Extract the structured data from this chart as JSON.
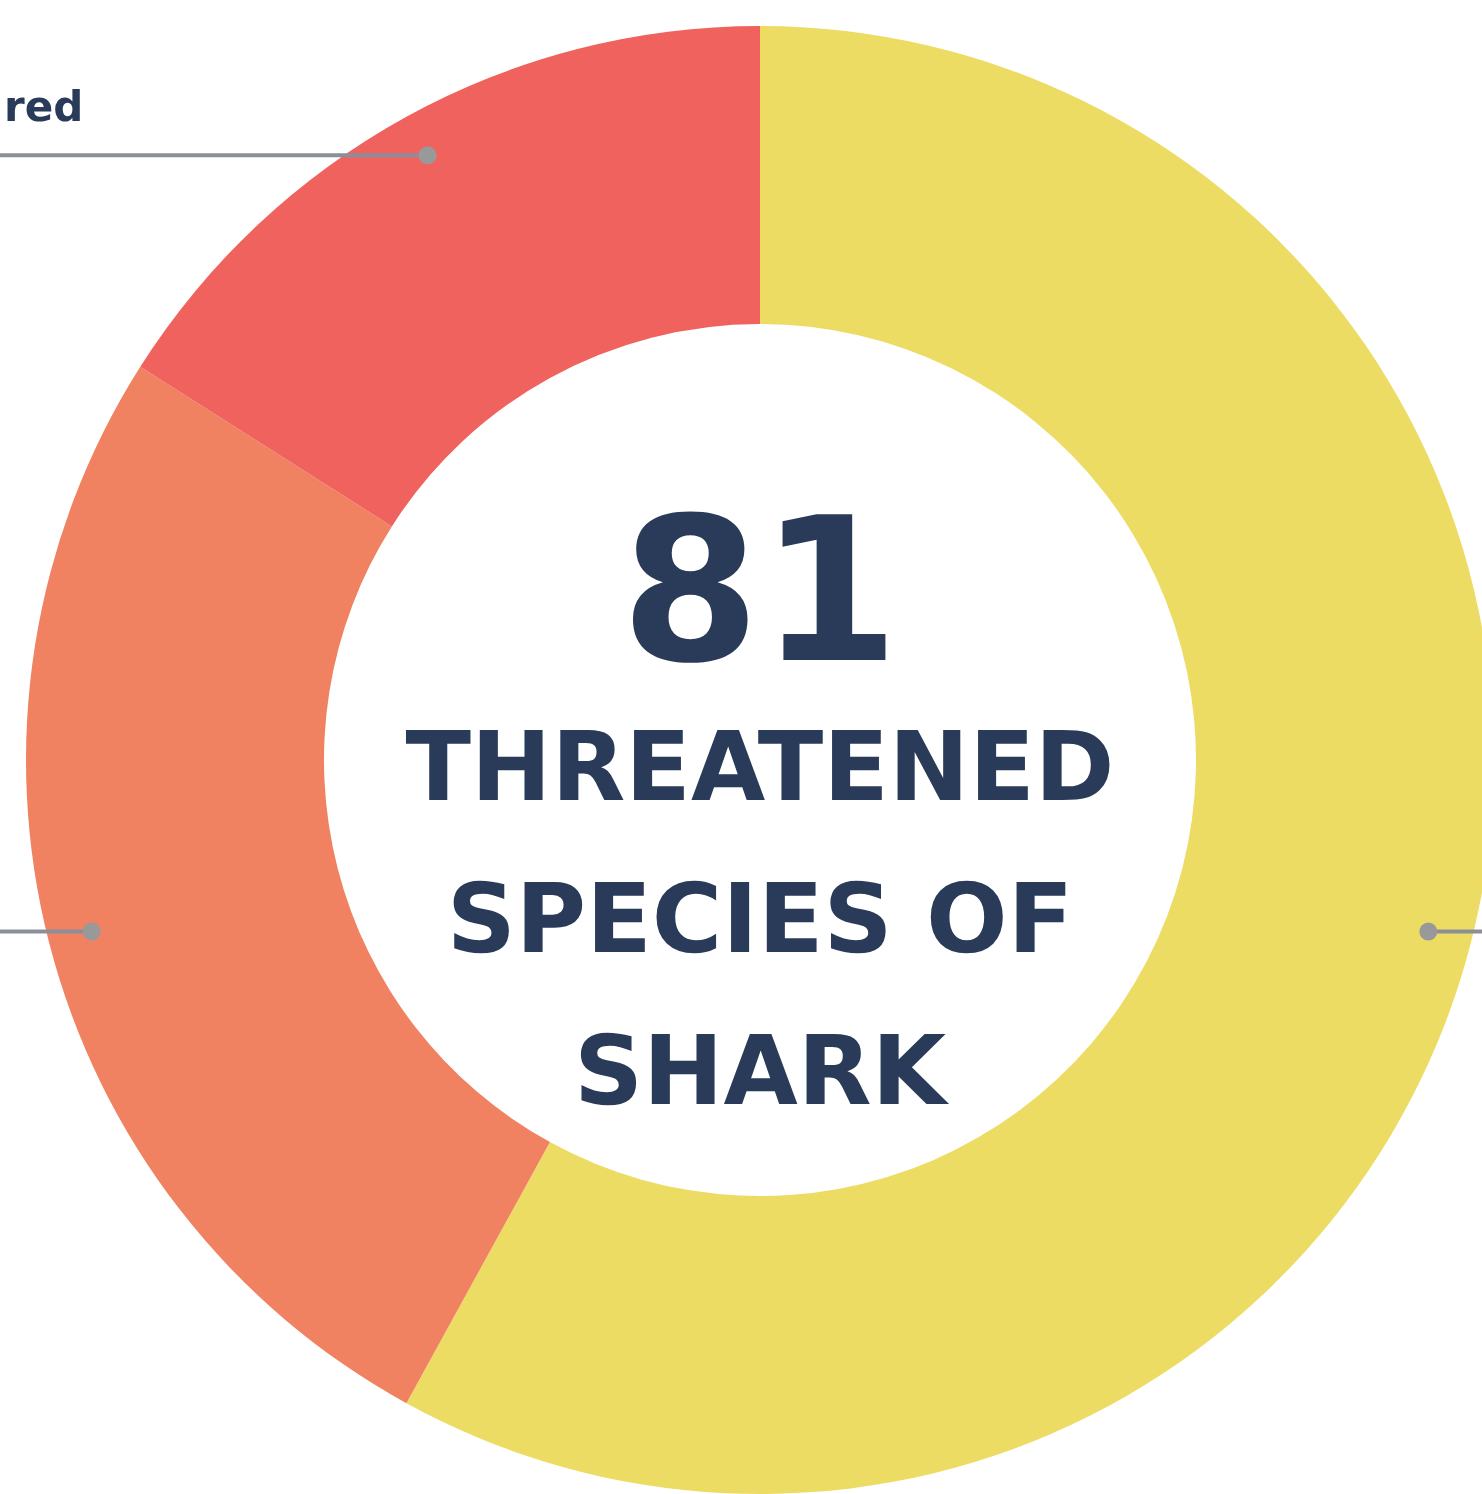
{
  "chart_data": {
    "type": "donut",
    "title": "81",
    "subtitle": "THREATENED SPECIES OF SHARK",
    "categories": [
      null,
      null,
      "red"
    ],
    "values": [
      58,
      26,
      16
    ],
    "colors": [
      "#ecdc64",
      "#f08262",
      "#f0625e"
    ]
  }
}
